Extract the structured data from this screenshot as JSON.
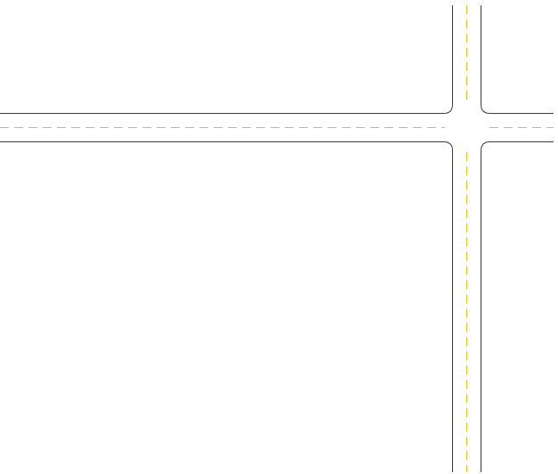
{
  "diagram": {
    "type": "road-intersection",
    "colors": {
      "background": "#ffffff",
      "curb_line": "#3a3a3a",
      "lane_marking": "#e8b820"
    },
    "roads": [
      {
        "orientation": "horizontal",
        "center_line": "dashed"
      },
      {
        "orientation": "vertical",
        "center_line": "dashed"
      }
    ]
  }
}
